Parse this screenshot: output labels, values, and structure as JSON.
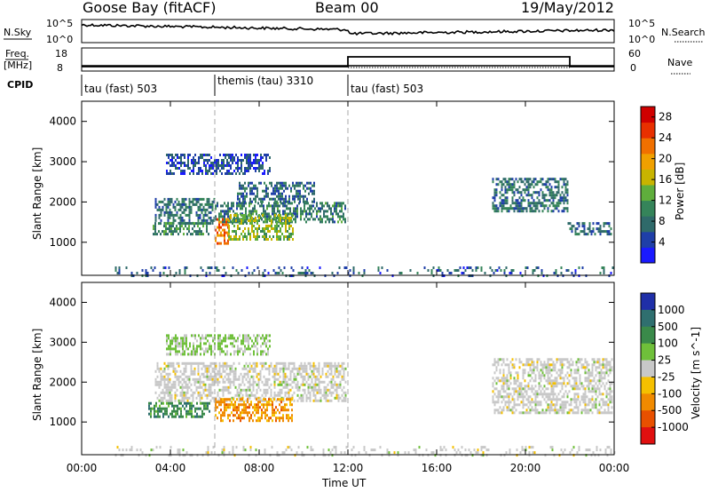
{
  "header": {
    "station": "Goose Bay (fitACF)",
    "beam": "Beam 00",
    "date": "19/May/2012"
  },
  "noise_panel": {
    "left_label": "N.Sky",
    "right_label": "N.Search",
    "left_ticks": [
      "10^5",
      "10^0"
    ],
    "right_ticks": [
      "10^5",
      "10^0"
    ]
  },
  "freq_panel": {
    "left_label_1": "Freq.",
    "left_label_2": "[MHz]",
    "left_ticks": [
      "18",
      "8"
    ],
    "right_ticks": [
      "60",
      "0"
    ],
    "right_label": "Nave"
  },
  "cpid": {
    "label": "CPID",
    "segments": [
      {
        "name": "tau (fast) 503",
        "start_hour": 0
      },
      {
        "name": "themis (tau) 3310",
        "start_hour": 6
      },
      {
        "name": "tau (fast) 503",
        "start_hour": 12
      }
    ]
  },
  "colors": {
    "power_scale": [
      "#1a1aff",
      "#1f3fa8",
      "#2f6a6a",
      "#35845a",
      "#5fae3c",
      "#c8b400",
      "#f0a000",
      "#f07000",
      "#e83000",
      "#d00000"
    ],
    "velocity_scale": [
      "#1f2fa8",
      "#2f6f6f",
      "#3a8a4a",
      "#6fc03a",
      "#c8c8c8",
      "#f5c000",
      "#f08a00",
      "#e85000",
      "#e01010"
    ]
  },
  "chart_data": [
    {
      "type": "heatmap",
      "title": "",
      "xlabel": "",
      "ylabel": "Slant Range [km]",
      "x_ticks": [
        "00:00",
        "04:00",
        "08:00",
        "12:00",
        "16:00",
        "20:00",
        "00:00"
      ],
      "xlim_hours": [
        0,
        24
      ],
      "y_ticks": [
        1000,
        2000,
        3000,
        4000
      ],
      "ylim": [
        180,
        4500
      ],
      "colorbar": {
        "label": "Power [dB]",
        "ticks": [
          4,
          8,
          12,
          16,
          20,
          24,
          28
        ],
        "range": [
          0,
          30
        ]
      },
      "grid": false,
      "vertical_markers_hours": [
        6,
        12
      ],
      "regions": [
        {
          "start_hour": 6.0,
          "end_hour": 11.9,
          "range_low": 1500,
          "range_high": 2000,
          "value_dB": 9
        },
        {
          "start_hour": 7.0,
          "end_hour": 10.5,
          "range_low": 2000,
          "range_high": 2500,
          "value_dB": 7
        },
        {
          "start_hour": 3.3,
          "end_hour": 6.0,
          "range_low": 1500,
          "range_high": 2100,
          "value_dB": 8
        },
        {
          "start_hour": 6.0,
          "end_hour": 6.6,
          "range_low": 1000,
          "range_high": 1600,
          "value_dB": 22
        },
        {
          "start_hour": 6.6,
          "end_hour": 9.5,
          "range_low": 1100,
          "range_high": 1700,
          "value_dB": 14
        },
        {
          "start_hour": 3.2,
          "end_hour": 5.8,
          "range_low": 1200,
          "range_high": 1500,
          "value_dB": 10
        },
        {
          "start_hour": 3.8,
          "end_hour": 8.5,
          "range_low": 2700,
          "range_high": 3200,
          "value_dB": 5
        },
        {
          "start_hour": 18.5,
          "end_hour": 21.9,
          "range_low": 1800,
          "range_high": 2600,
          "value_dB": 8
        },
        {
          "start_hour": 21.9,
          "end_hour": 23.9,
          "range_low": 1200,
          "range_high": 1500,
          "value_dB": 7
        },
        {
          "start_hour": 1.5,
          "end_hour": 24.0,
          "range_low": 180,
          "range_high": 400,
          "value_dB": 6
        }
      ]
    },
    {
      "type": "heatmap",
      "title": "",
      "xlabel": "Time UT",
      "ylabel": "Slant Range [km]",
      "x_ticks": [
        "00:00",
        "04:00",
        "08:00",
        "12:00",
        "16:00",
        "20:00",
        "00:00"
      ],
      "xlim_hours": [
        0,
        24
      ],
      "y_ticks": [
        1000,
        2000,
        3000,
        4000
      ],
      "ylim": [
        180,
        4500
      ],
      "colorbar": {
        "label": "Velocity [m s^-1]",
        "ticks": [
          "1000",
          "500",
          "100",
          "25",
          "-25",
          "-100",
          "-500",
          "-1000"
        ]
      },
      "grid": false,
      "vertical_markers_hours": [
        6,
        12
      ],
      "regions": [
        {
          "start_hour": 3.3,
          "end_hour": 11.9,
          "range_low": 1500,
          "range_high": 2500,
          "velocity": 0
        },
        {
          "start_hour": 18.5,
          "end_hour": 23.9,
          "range_low": 1200,
          "range_high": 2600,
          "velocity": 0
        },
        {
          "start_hour": 6.0,
          "end_hour": 9.5,
          "range_low": 1000,
          "range_high": 1600,
          "velocity": -250
        },
        {
          "start_hour": 3.0,
          "end_hour": 5.8,
          "range_low": 1100,
          "range_high": 1500,
          "velocity": 150
        },
        {
          "start_hour": 3.8,
          "end_hour": 8.5,
          "range_low": 2700,
          "range_high": 3200,
          "velocity": 40
        },
        {
          "start_hour": 1.5,
          "end_hour": 24.0,
          "range_low": 180,
          "range_high": 400,
          "velocity": 0
        }
      ]
    }
  ]
}
